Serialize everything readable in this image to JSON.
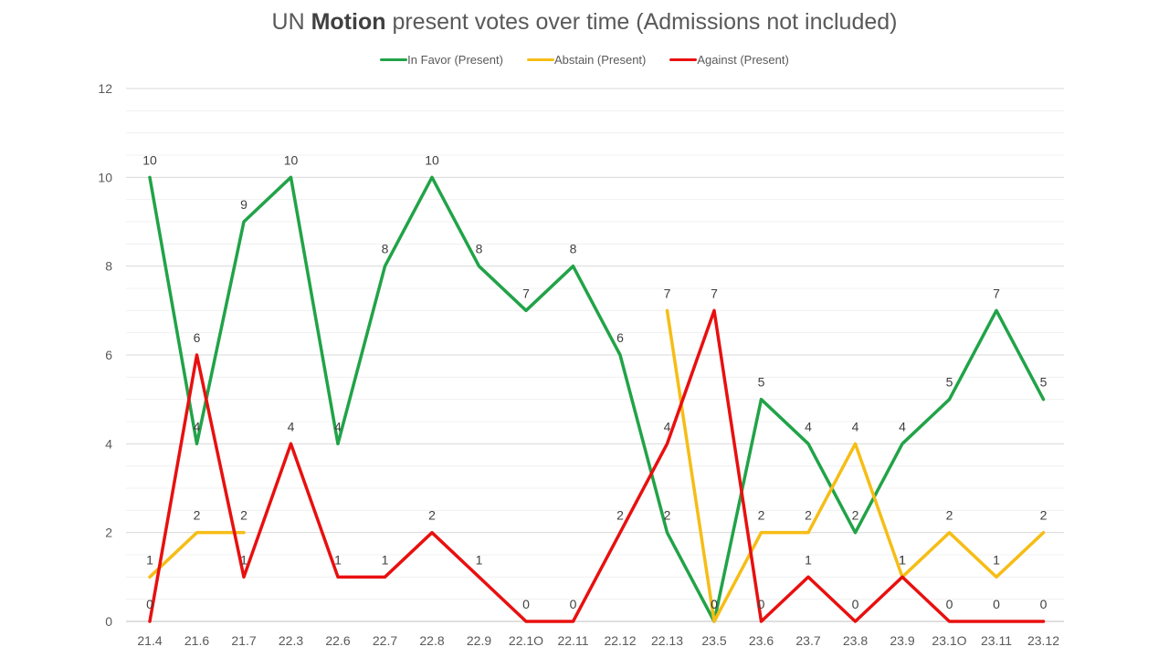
{
  "title": {
    "prefix": "UN",
    "bold": "Motion",
    "suffix": "present votes over time (Admissions not included)"
  },
  "chart_data": {
    "type": "line",
    "categories": [
      "21.4",
      "21.6",
      "21.7",
      "22.3",
      "22.6",
      "22.7",
      "22.8",
      "22.9",
      "22.1O",
      "22.11",
      "22.12",
      "22.13",
      "23.5",
      "23.6",
      "23.7",
      "23.8",
      "23.9",
      "23.1O",
      "23.11",
      "23.12"
    ],
    "ylim": [
      0,
      12
    ],
    "yticks": [
      0,
      2,
      4,
      6,
      8,
      10,
      12
    ],
    "grid": true,
    "legend_position": "top",
    "series": [
      {
        "name": "In Favor (Present)",
        "color": "#21a348",
        "values": [
          10,
          4,
          9,
          10,
          4,
          8,
          10,
          8,
          7,
          8,
          6,
          2,
          0,
          5,
          4,
          2,
          4,
          5,
          7,
          5
        ],
        "labels": [
          "10",
          "4",
          "9",
          "10",
          "4",
          "8",
          "10",
          "8",
          "7",
          "8",
          "6",
          "2",
          "0",
          "5",
          "4",
          "2",
          "4",
          "5",
          "7",
          "5"
        ]
      },
      {
        "name": "Abstain (Present)",
        "color": "#f6bd16",
        "values": [
          1,
          2,
          2,
          null,
          null,
          null,
          null,
          null,
          null,
          null,
          null,
          7,
          0,
          2,
          2,
          4,
          1,
          2,
          1,
          2
        ],
        "labels": [
          "1",
          "2",
          "2",
          null,
          null,
          null,
          null,
          null,
          null,
          null,
          null,
          "7",
          "0",
          "2",
          "2",
          "4",
          "1",
          "2",
          "1",
          "2"
        ]
      },
      {
        "name": "Against  (Present)",
        "color": "#e8100f",
        "values": [
          0,
          6,
          1,
          4,
          1,
          1,
          2,
          1,
          0,
          0,
          2,
          4,
          7,
          0,
          1,
          0,
          1,
          0,
          0,
          0
        ],
        "labels": [
          "0",
          "6",
          "1",
          "4",
          "1",
          "1",
          "2",
          "1",
          "0",
          "0",
          "2",
          "4",
          "7",
          "0",
          "1",
          "0",
          "1",
          "0",
          "0",
          "0"
        ]
      }
    ]
  }
}
